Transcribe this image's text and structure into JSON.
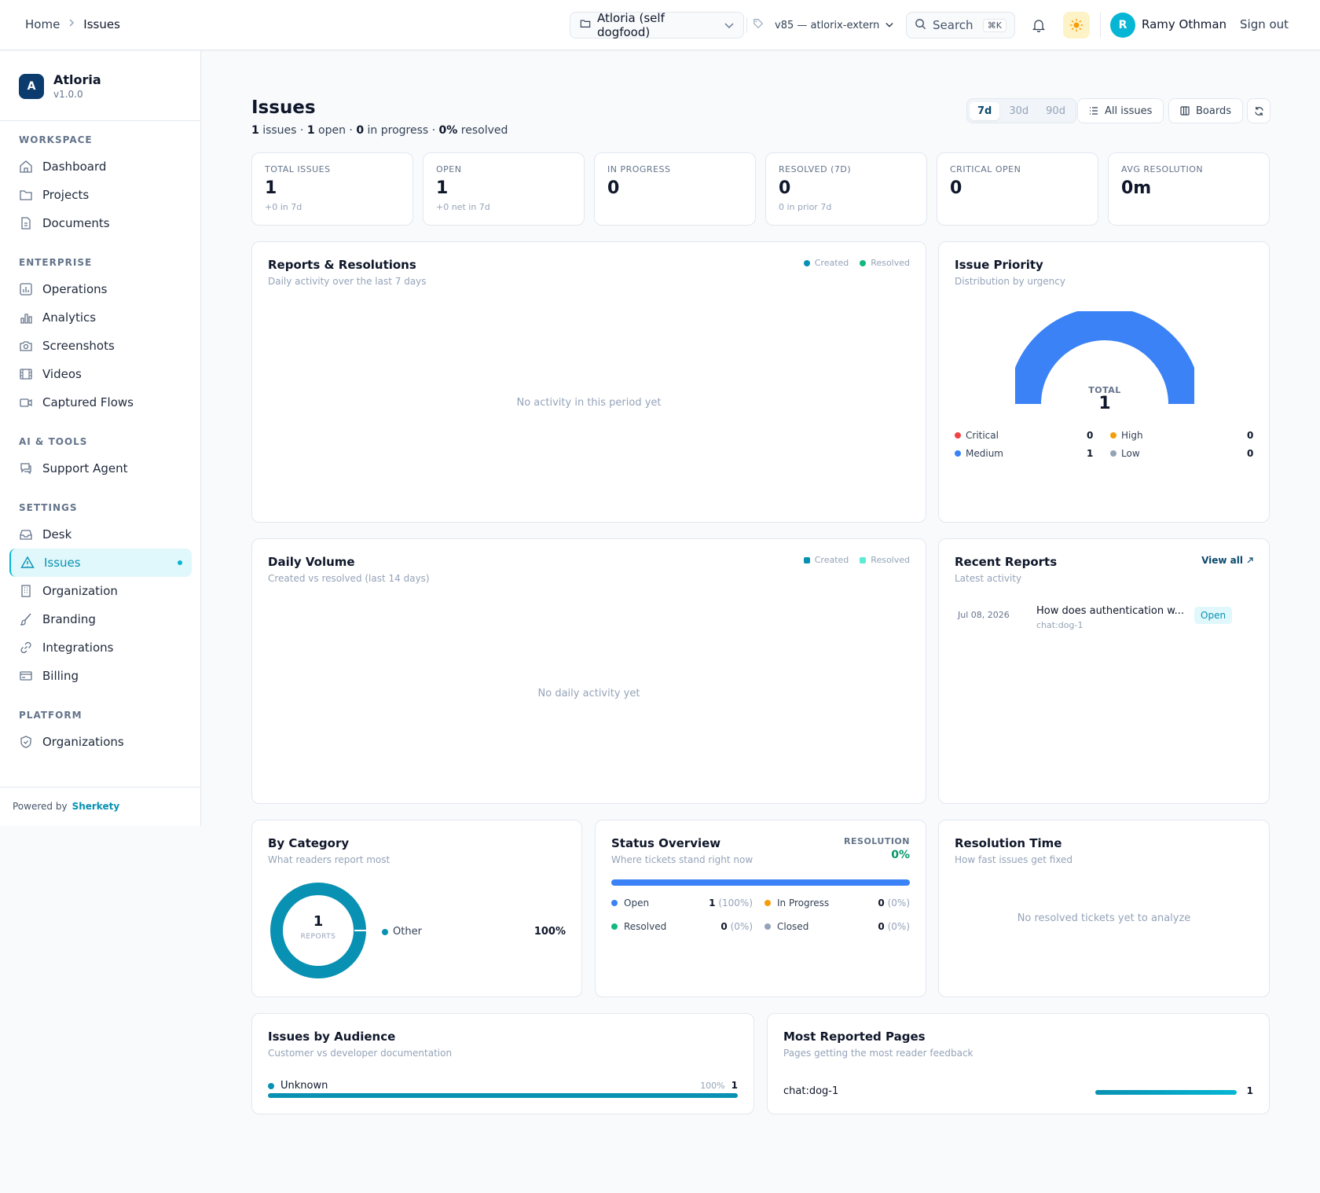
{
  "topbar": {
    "breadcrumb": {
      "home": "Home",
      "current": "Issues"
    },
    "project": "Atloria (self dogfood)",
    "version": "v85 — atlorix-extern",
    "search": {
      "label": "Search",
      "shortcut": "⌘K"
    },
    "user": {
      "initial": "R",
      "name": "Ramy Othman"
    },
    "signout": "Sign out"
  },
  "sidebar": {
    "brand": {
      "initial": "A",
      "name": "Atloria",
      "version": "v1.0.0"
    },
    "sections": {
      "workspace": "WORKSPACE",
      "enterprise": "ENTERPRISE",
      "ai_tools": "AI & TOOLS",
      "settings": "SETTINGS",
      "platform": "PLATFORM"
    },
    "items": {
      "dashboard": "Dashboard",
      "projects": "Projects",
      "documents": "Documents",
      "operations": "Operations",
      "analytics": "Analytics",
      "screenshots": "Screenshots",
      "videos": "Videos",
      "captured_flows": "Captured Flows",
      "support_agent": "Support Agent",
      "desk": "Desk",
      "issues": "Issues",
      "organization": "Organization",
      "branding": "Branding",
      "integrations": "Integrations",
      "billing": "Billing",
      "organizations": "Organizations"
    },
    "powered": {
      "label": "Powered by",
      "brand": "Sherkety"
    }
  },
  "page": {
    "title": "Issues",
    "summary": {
      "n_issues": "1",
      "issues_label": "issues ·",
      "n_open": "1",
      "open_label": "open ·",
      "n_progress": "0",
      "progress_label": "in progress ·",
      "pct_resolved": "0%",
      "resolved_label": "resolved"
    },
    "ranges": [
      "7d",
      "30d",
      "90d"
    ],
    "all_issues": "All issues",
    "boards": "Boards"
  },
  "stats": [
    {
      "label": "TOTAL ISSUES",
      "value": "1",
      "hint": "+0 in 7d"
    },
    {
      "label": "OPEN",
      "value": "1",
      "hint": "+0 net in 7d"
    },
    {
      "label": "IN PROGRESS",
      "value": "0",
      "hint": ""
    },
    {
      "label": "RESOLVED (7D)",
      "value": "0",
      "hint": "0 in prior 7d"
    },
    {
      "label": "CRITICAL OPEN",
      "value": "0",
      "hint": ""
    },
    {
      "label": "AVG RESOLUTION",
      "value": "0m",
      "hint": ""
    }
  ],
  "reports": {
    "title": "Reports & Resolutions",
    "subtitle": "Daily activity over the last 7 days",
    "legend": [
      "Created",
      "Resolved"
    ],
    "empty": "No activity in this period yet"
  },
  "priority": {
    "title": "Issue Priority",
    "subtitle": "Distribution by urgency",
    "total_label": "TOTAL",
    "total": "1",
    "items": [
      {
        "name": "Critical",
        "value": "0",
        "color": "#ef4444"
      },
      {
        "name": "High",
        "value": "0",
        "color": "#f59e0b"
      },
      {
        "name": "Medium",
        "value": "1",
        "color": "#3b82f6"
      },
      {
        "name": "Low",
        "value": "0",
        "color": "#94a3b8"
      }
    ]
  },
  "daily": {
    "title": "Daily Volume",
    "subtitle": "Created vs resolved (last 14 days)",
    "legend": [
      "Created",
      "Resolved"
    ],
    "empty": "No daily activity yet"
  },
  "recent": {
    "title": "Recent Reports",
    "subtitle": "Latest activity",
    "view_all": "View all",
    "items": [
      {
        "date": "Jul 08, 2026",
        "title": "How does authentication w...",
        "source": "chat:dog-1",
        "status": "Open"
      }
    ]
  },
  "category": {
    "title": "By Category",
    "subtitle": "What readers report most",
    "center_value": "1",
    "center_label": "REPORTS",
    "items": [
      {
        "name": "Other",
        "pct": "100%"
      }
    ]
  },
  "status": {
    "title": "Status Overview",
    "subtitle": "Where tickets stand right now",
    "resolution_label": "RESOLUTION",
    "resolution_value": "0%",
    "items": [
      {
        "name": "Open",
        "count": "1",
        "pct": "(100%)",
        "color": "#3b82f6"
      },
      {
        "name": "In Progress",
        "count": "0",
        "pct": "(0%)",
        "color": "#f59e0b"
      },
      {
        "name": "Resolved",
        "count": "0",
        "pct": "(0%)",
        "color": "#10b981"
      },
      {
        "name": "Closed",
        "count": "0",
        "pct": "(0%)",
        "color": "#94a3b8"
      }
    ]
  },
  "resolution_time": {
    "title": "Resolution Time",
    "subtitle": "How fast issues get fixed",
    "empty": "No resolved tickets yet to analyze"
  },
  "audience": {
    "title": "Issues by Audience",
    "subtitle": "Customer vs developer documentation",
    "items": [
      {
        "name": "Unknown",
        "pct": "100%",
        "count": "1"
      }
    ]
  },
  "pages": {
    "title": "Most Reported Pages",
    "subtitle": "Pages getting the most reader feedback",
    "items": [
      {
        "name": "chat:dog-1",
        "count": "1"
      }
    ]
  },
  "colors": {
    "accent": "#06b6d4",
    "accent_dark": "#0891b2",
    "blue": "#3b82f6"
  }
}
